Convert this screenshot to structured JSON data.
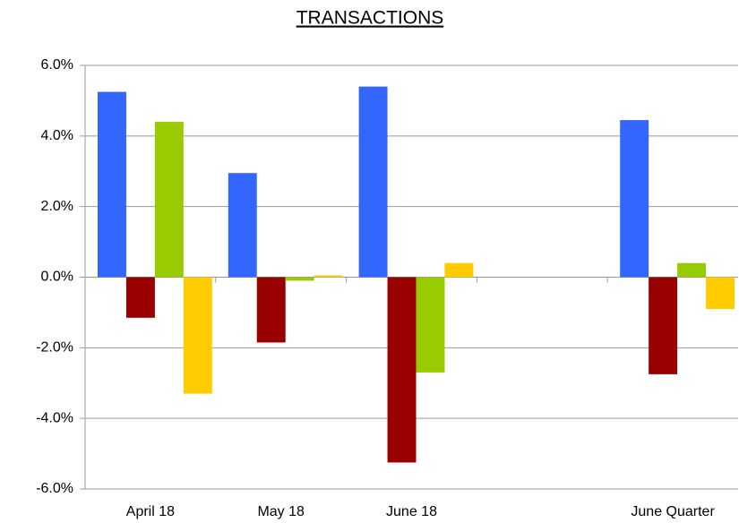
{
  "chart_data": {
    "type": "bar",
    "title": "TRANSACTIONS",
    "categories": [
      "April 18",
      "May 18",
      "June 18",
      null,
      "June Quarter"
    ],
    "series": [
      {
        "color": "#3366ff",
        "values": [
          5.25,
          2.95,
          5.4,
          null,
          4.45
        ]
      },
      {
        "color": "#990000",
        "values": [
          -1.15,
          -1.85,
          -5.25,
          null,
          -2.75
        ]
      },
      {
        "color": "#99cc00",
        "values": [
          4.4,
          -0.1,
          -2.7,
          null,
          0.4
        ]
      },
      {
        "color": "#ffcc00",
        "values": [
          -3.3,
          0.05,
          0.4,
          null,
          -0.9
        ]
      }
    ],
    "ylim": [
      -6,
      6
    ],
    "yticks": [
      {
        "value": -6,
        "label": "-6.0%"
      },
      {
        "value": -4,
        "label": "-4.0%"
      },
      {
        "value": -2,
        "label": "-2.0%"
      },
      {
        "value": 0,
        "label": "0.0%"
      },
      {
        "value": 2,
        "label": "2.0%"
      },
      {
        "value": 4,
        "label": "4.0%"
      },
      {
        "value": 6,
        "label": "6.0%"
      }
    ],
    "grid": true
  }
}
